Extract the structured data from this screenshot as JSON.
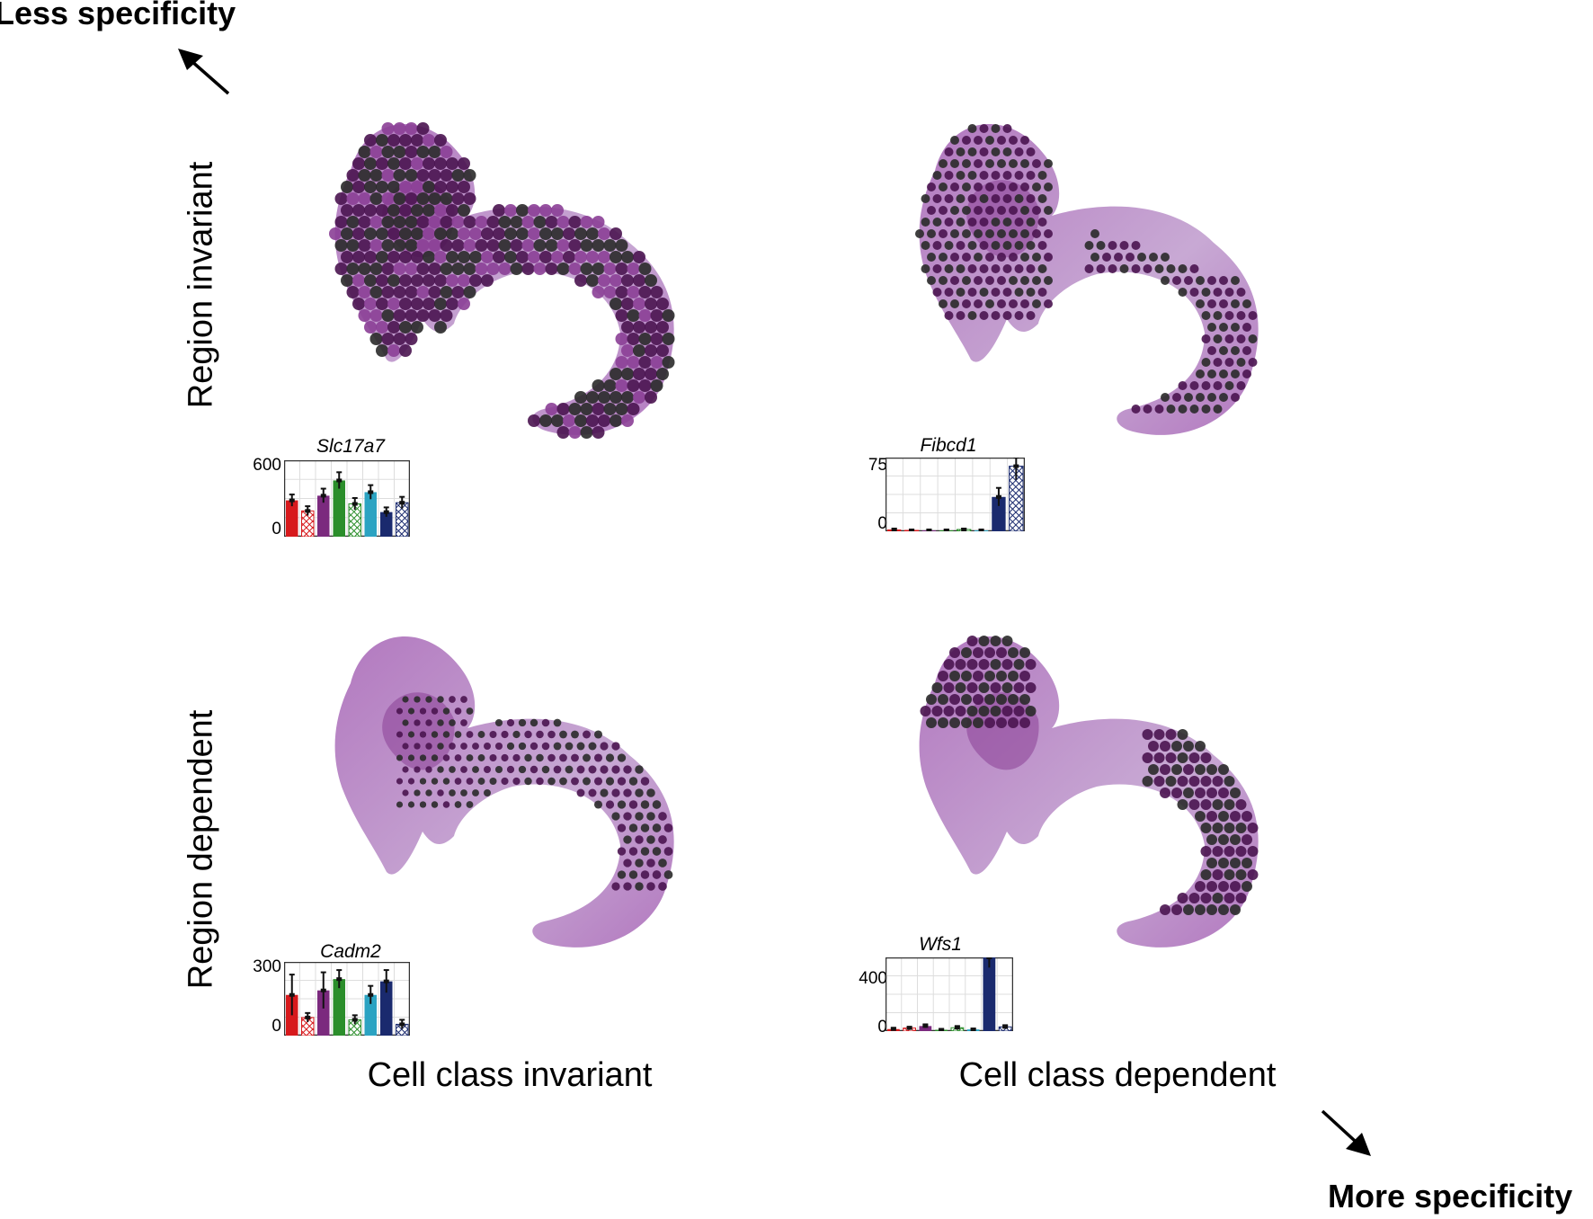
{
  "corners": {
    "less": "Less specificity",
    "more": "More specificity"
  },
  "rows": [
    "Region invariant",
    "Region dependent"
  ],
  "columns": [
    "Cell class invariant",
    "Cell class dependent"
  ],
  "colors": {
    "tissue_light": "#c8a9d4",
    "tissue_mid": "#b278bf",
    "tissue_dark": "#8b3f96",
    "spot_dark": "#2a2a2a",
    "spot_purple": "#4a1450",
    "bars": [
      "#d7191c",
      "#d7191c",
      "#7b2a7e",
      "#2b8e2b",
      "#2b8e2b",
      "#2ba3c2",
      "#1a2a6e",
      "#1a2a6e"
    ],
    "bar_hatched": [
      false,
      true,
      false,
      false,
      true,
      false,
      false,
      true
    ]
  },
  "panels": [
    {
      "gene": "Slc17a7",
      "ymax_label": "600",
      "ymin_label": "0",
      "ymax": 600,
      "values": [
        310,
        220,
        350,
        480,
        280,
        380,
        210,
        290
      ],
      "errors": [
        50,
        40,
        60,
        70,
        50,
        60,
        40,
        50
      ],
      "spots": "dense-everywhere"
    },
    {
      "gene": "Fibcd1",
      "ymax_label": "75",
      "ymin_label": "0",
      "ymax": 75,
      "values": [
        2,
        1,
        1,
        1,
        2,
        1,
        38,
        72
      ],
      "errors": [
        1,
        1,
        1,
        1,
        1,
        1,
        10,
        15
      ],
      "spots": "ca-dorsal"
    },
    {
      "gene": "Cadm2",
      "ymax_label": "300",
      "ymin_label": "0",
      "ymax": 300,
      "values": [
        180,
        80,
        200,
        250,
        70,
        180,
        240,
        50
      ],
      "errors": [
        90,
        20,
        80,
        40,
        20,
        40,
        50,
        20
      ],
      "spots": "gradient"
    },
    {
      "gene": "Wfs1",
      "ymax_label": "400",
      "ymin_label": "0",
      "ymax": 400,
      "values": [
        12,
        18,
        30,
        8,
        20,
        10,
        470,
        25
      ],
      "errors": [
        8,
        8,
        10,
        5,
        10,
        5,
        60,
        10
      ],
      "spots": "ca1-dorsal"
    }
  ]
}
